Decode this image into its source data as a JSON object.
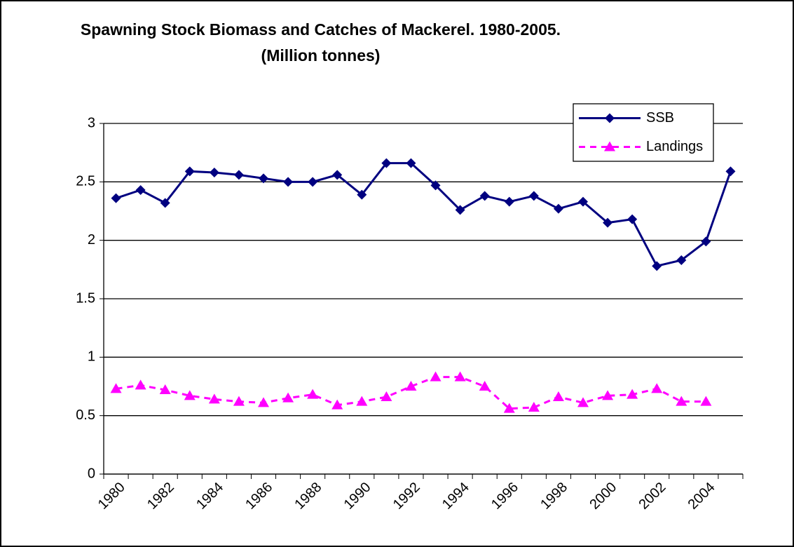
{
  "chart_data": {
    "type": "line",
    "title": "Spawning Stock Biomass and Catches of Mackerel.  1980-2005. (Million tonnes)",
    "categories": [
      "1980",
      null,
      "1982",
      null,
      "1984",
      null,
      "1986",
      null,
      "1988",
      null,
      "1990",
      null,
      "1992",
      null,
      "1994",
      null,
      "1996",
      null,
      "1998",
      null,
      "2000",
      null,
      "2002",
      null,
      "2004",
      null
    ],
    "series": [
      {
        "name": "SSB",
        "color": "#000080",
        "marker": "diamond",
        "dashed": false,
        "values": [
          2.36,
          2.43,
          2.32,
          2.59,
          2.58,
          2.56,
          2.53,
          2.5,
          2.5,
          2.56,
          2.39,
          2.66,
          2.66,
          2.47,
          2.26,
          2.38,
          2.33,
          2.38,
          2.27,
          2.33,
          2.15,
          2.18,
          1.78,
          1.83,
          1.99,
          2.59
        ]
      },
      {
        "name": "Landings",
        "color": "#ff00ff",
        "marker": "triangle",
        "dashed": true,
        "values": [
          0.73,
          0.76,
          0.72,
          0.67,
          0.64,
          0.62,
          0.61,
          0.65,
          0.68,
          0.59,
          0.62,
          0.66,
          0.75,
          0.83,
          0.83,
          0.75,
          0.56,
          0.57,
          0.66,
          0.61,
          0.67,
          0.68,
          0.73,
          0.62,
          0.62,
          null
        ]
      }
    ],
    "ylim": [
      0,
      3
    ],
    "yticks": [
      0,
      0.5,
      1,
      1.5,
      2,
      2.5,
      3
    ],
    "grid": true,
    "legend": "top-right"
  }
}
